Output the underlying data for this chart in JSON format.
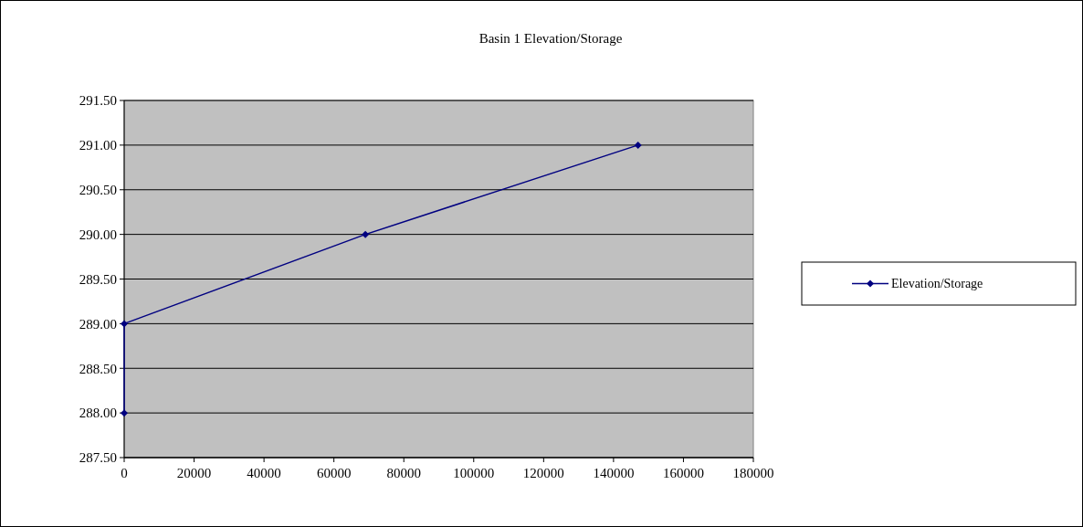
{
  "chart_data": {
    "type": "line",
    "title": "Basin 1 Elevation/Storage",
    "x": [
      0,
      0,
      69000,
      147000
    ],
    "series": [
      {
        "name": "Elevation/Storage",
        "color": "#000080",
        "values": [
          288,
          289,
          290,
          291
        ]
      }
    ],
    "xlim": [
      0,
      180000
    ],
    "xticks": [
      0,
      20000,
      40000,
      60000,
      80000,
      100000,
      120000,
      140000,
      160000,
      180000
    ],
    "ylim": [
      287.5,
      291.5
    ],
    "yticks": [
      {
        "value": 287.5,
        "label": "287.50"
      },
      {
        "value": 288,
        "label": "288.00"
      },
      {
        "value": 288.5,
        "label": "288.50"
      },
      {
        "value": 289,
        "label": "289.00"
      },
      {
        "value": 289.5,
        "label": "289.50"
      },
      {
        "value": 290,
        "label": "290.00"
      },
      {
        "value": 290.5,
        "label": "290.50"
      },
      {
        "value": 291,
        "label": "291.00"
      },
      {
        "value": 291.5,
        "label": "291.50"
      }
    ],
    "grid": "y",
    "legend": "right",
    "marker": "diamond",
    "line_style": "solid"
  }
}
